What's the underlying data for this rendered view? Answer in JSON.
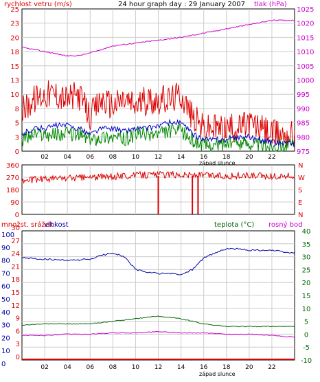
{
  "header": {
    "left_label": "rychlost vetru (m/s)",
    "title": "24 hour graph day : 29 January 2007",
    "right_label": "tlak (hPa)"
  },
  "panel1": {
    "left_ticks": [
      "25",
      "23",
      "20",
      "18",
      "15",
      "13",
      "10",
      "8",
      "5",
      "3",
      "0"
    ],
    "right_ticks": [
      "1025",
      "1020",
      "1015",
      "1010",
      "1005",
      "1000",
      "995",
      "990",
      "985",
      "980",
      "975"
    ],
    "x_ticks": [
      "02",
      "04",
      "06",
      "08",
      "10",
      "12",
      "14",
      "16",
      "18",
      "20",
      "22"
    ],
    "x_caption": "západ slunce"
  },
  "panel2": {
    "left_ticks": [
      "360",
      "270",
      "180",
      "90",
      "0"
    ],
    "right_ticks": [
      "N",
      "W",
      "S",
      "E",
      "N"
    ]
  },
  "panel3": {
    "left_label_1": "množst. srážek",
    "left_label_2": "vlhkost",
    "mid_label": "teplota (°C)",
    "right_label": "rosný bod",
    "red_ticks": [
      "30",
      "27",
      "24",
      "21",
      "18",
      "15",
      "12",
      "9",
      "6",
      "3",
      "0"
    ],
    "blue_ticks": [
      "100",
      "90",
      "80",
      "70",
      "60",
      "50",
      "40",
      "30",
      "20",
      "10",
      "0"
    ],
    "right_ticks": [
      "40",
      "35",
      "30",
      "25",
      "20",
      "15",
      "10",
      "5",
      "0",
      "-5",
      "-10"
    ],
    "x_ticks": [
      "02",
      "04",
      "06",
      "08",
      "10",
      "12",
      "14",
      "16",
      "18",
      "20",
      "22"
    ],
    "x_caption": "západ slunce"
  },
  "colors": {
    "wind": "#dd0000",
    "gust": "#dd0000",
    "avg_wind": "#0000cc",
    "wind_green": "#008800",
    "pressure": "#cc00cc",
    "direction": "#dd0000",
    "humidity": "#0000aa",
    "temperature": "#006600",
    "dewpoint": "#cc00cc",
    "rain": "#dd0000"
  },
  "chart_data": [
    {
      "type": "line",
      "title": "24 hour graph day : 29 January 2007",
      "ylabel": "rychlost vetru (m/s)",
      "y2label": "tlak (hPa)",
      "xlabel": "západ slunce",
      "xlim": [
        0,
        24
      ],
      "ylim": [
        0,
        25
      ],
      "y2lim": [
        975,
        1025
      ],
      "series": [
        {
          "name": "tlak (hPa)",
          "axis": "right",
          "x": [
            0,
            2,
            4,
            5,
            6,
            8,
            10,
            12,
            14,
            16,
            18,
            20,
            22,
            23.5
          ],
          "values": [
            1011.5,
            1010,
            1008.5,
            1008.6,
            1009.5,
            1012,
            1013,
            1014,
            1015,
            1016.5,
            1018,
            1019.5,
            1021,
            1021
          ]
        },
        {
          "name": "rychlost vetru (m/s)",
          "x": [
            0,
            1,
            2,
            3,
            4,
            5,
            6,
            7,
            8,
            9,
            10,
            11,
            12,
            13,
            14,
            15,
            16,
            17,
            18,
            19,
            20,
            21,
            22,
            23.5
          ],
          "values": [
            7,
            9,
            10,
            10,
            9,
            10,
            6,
            9,
            8,
            9,
            8,
            9,
            9,
            9,
            10,
            6,
            4,
            4,
            4,
            4,
            5,
            4,
            3,
            3
          ]
        },
        {
          "name": "avg",
          "x": [
            0,
            1,
            2,
            3,
            4,
            5,
            6,
            7,
            8,
            9,
            10,
            11,
            12,
            13,
            14,
            15,
            16,
            17,
            18,
            19,
            20,
            21,
            22,
            23.5
          ],
          "values": [
            3,
            4,
            4,
            4.5,
            4.5,
            4,
            3,
            4,
            4,
            3.5,
            4,
            4,
            4.5,
            5,
            5,
            3,
            2,
            2,
            2,
            2.5,
            2.5,
            2,
            1.5,
            1.5
          ]
        },
        {
          "name": "green",
          "x": [
            0,
            1,
            2,
            3,
            4,
            5,
            6,
            7,
            8,
            9,
            10,
            11,
            12,
            13,
            14,
            15,
            16,
            17,
            18,
            19,
            20,
            21,
            22,
            23.5
          ],
          "values": [
            2,
            3,
            3,
            3,
            3,
            3,
            2,
            2.5,
            2.5,
            2,
            3,
            3,
            3,
            3.5,
            3.5,
            2,
            1,
            1,
            1.5,
            1.5,
            1.5,
            1,
            1,
            1
          ]
        }
      ]
    },
    {
      "type": "line",
      "ylim": [
        0,
        360
      ],
      "xlim": [
        0,
        24
      ],
      "series": [
        {
          "name": "direction",
          "x": [
            0,
            2,
            4,
            6,
            8,
            10,
            12,
            14,
            16,
            18,
            20,
            22,
            23.5
          ],
          "values": [
            245,
            260,
            265,
            270,
            275,
            285,
            290,
            290,
            285,
            280,
            280,
            275,
            280
          ]
        }
      ]
    },
    {
      "type": "line",
      "xlabel": "západ slunce",
      "xlim": [
        0,
        24
      ],
      "series": [
        {
          "name": "vlhkost",
          "axis": "blue",
          "ylim": [
            0,
            100
          ],
          "x": [
            0,
            2,
            4,
            6,
            7,
            8,
            9,
            10,
            11,
            12,
            13,
            14,
            15,
            16,
            17,
            18,
            19,
            20,
            21,
            22,
            23.5
          ],
          "values": [
            79,
            78,
            77,
            78,
            81,
            83,
            80,
            70,
            68,
            67,
            67,
            66,
            70,
            79,
            83,
            86,
            86,
            85,
            85,
            85,
            83
          ]
        },
        {
          "name": "teplota (°C)",
          "axis": "right",
          "ylim": [
            -10,
            40
          ],
          "x": [
            0,
            2,
            4,
            6,
            8,
            10,
            12,
            14,
            16,
            18,
            20,
            22,
            23.5
          ],
          "values": [
            3.5,
            4,
            4,
            4,
            5,
            6,
            7,
            6,
            4,
            3,
            3,
            3,
            3
          ]
        },
        {
          "name": "rosný bod",
          "axis": "right",
          "ylim": [
            -10,
            40
          ],
          "x": [
            0,
            2,
            4,
            6,
            8,
            10,
            12,
            14,
            16,
            18,
            20,
            22,
            23.5
          ],
          "values": [
            -0.5,
            -0.5,
            0,
            0,
            0.5,
            0.5,
            1,
            0.5,
            0.5,
            0,
            0,
            -0.5,
            -1
          ]
        },
        {
          "name": "množst. srážek",
          "axis": "red",
          "ylim": [
            0,
            30
          ],
          "x": [
            0,
            24
          ],
          "values": [
            0,
            0
          ]
        }
      ]
    }
  ]
}
